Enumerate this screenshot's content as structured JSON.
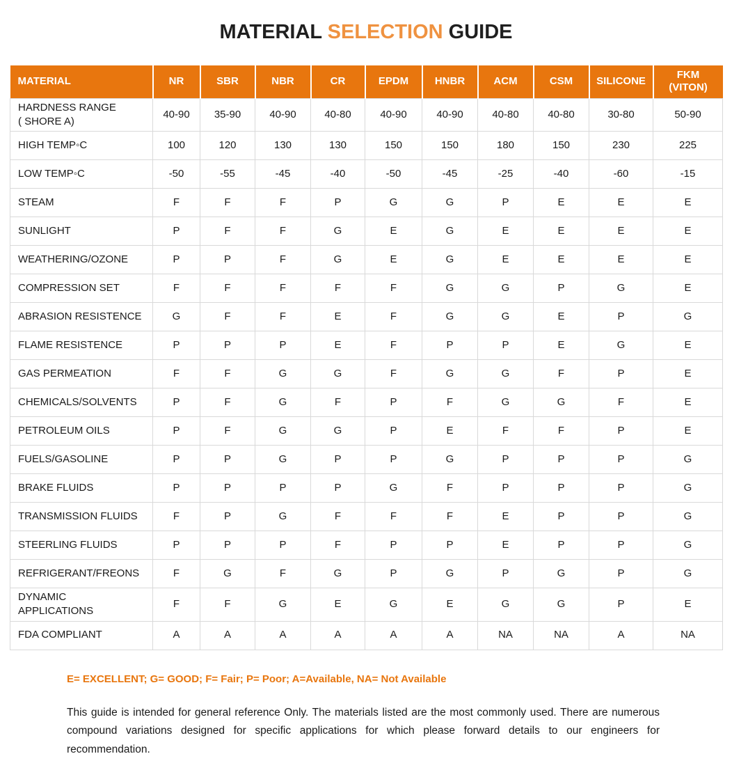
{
  "title": {
    "part1": "MATERIAL ",
    "part2": "SELECTION",
    "part3": " GUIDE"
  },
  "colors": {
    "header_bg": "#e8760e",
    "title_accent": "#ef9240",
    "legend_text": "#e8760e",
    "grid_line": "#d9d9d9"
  },
  "table": {
    "columns": [
      "MATERIAL",
      "NR",
      "SBR",
      "NBR",
      "CR",
      "EPDM",
      "HNBR",
      "ACM",
      "CSM",
      "SILICONE",
      "FKM\n(VITON)"
    ],
    "rows": [
      {
        "label": "HARDNESS RANGE\n( SHORE A)",
        "values": [
          "40-90",
          "35-90",
          "40-90",
          "40-80",
          "40-90",
          "40-90",
          "40-80",
          "40-80",
          "30-80",
          "50-90"
        ]
      },
      {
        "label": "HIGH TEMP◦C",
        "values": [
          "100",
          "120",
          "130",
          "130",
          "150",
          "150",
          "180",
          "150",
          "230",
          "225"
        ]
      },
      {
        "label": "LOW TEMP◦C",
        "values": [
          "-50",
          "-55",
          "-45",
          "-40",
          "-50",
          "-45",
          "-25",
          "-40",
          "-60",
          "-15"
        ]
      },
      {
        "label": "STEAM",
        "values": [
          "F",
          "F",
          "F",
          "P",
          "G",
          "G",
          "P",
          "E",
          "E",
          "E"
        ]
      },
      {
        "label": "SUNLIGHT",
        "values": [
          "P",
          "F",
          "F",
          "G",
          "E",
          "G",
          "E",
          "E",
          "E",
          "E"
        ]
      },
      {
        "label": "WEATHERING/OZONE",
        "values": [
          "P",
          "P",
          "F",
          "G",
          "E",
          "G",
          "E",
          "E",
          "E",
          "E"
        ]
      },
      {
        "label": "COMPRESSION SET",
        "values": [
          "F",
          "F",
          "F",
          "F",
          "F",
          "G",
          "G",
          "P",
          "G",
          "E"
        ]
      },
      {
        "label": "ABRASION RESISTENCE",
        "values": [
          "G",
          "F",
          "F",
          "E",
          "F",
          "G",
          "G",
          "E",
          "P",
          "G"
        ]
      },
      {
        "label": "FLAME RESISTENCE",
        "values": [
          "P",
          "P",
          "P",
          "E",
          "F",
          "P",
          "P",
          "E",
          "G",
          "E"
        ]
      },
      {
        "label": "GAS PERMEATION",
        "values": [
          "F",
          "F",
          "G",
          "G",
          "F",
          "G",
          "G",
          "F",
          "P",
          "E"
        ]
      },
      {
        "label": "CHEMICALS/SOLVENTS",
        "values": [
          "P",
          "F",
          "G",
          "F",
          "P",
          "F",
          "G",
          "G",
          "F",
          "E"
        ]
      },
      {
        "label": "PETROLEUM OILS",
        "values": [
          "P",
          "F",
          "G",
          "G",
          "P",
          "E",
          "F",
          "F",
          "P",
          "E"
        ]
      },
      {
        "label": "FUELS/GASOLINE",
        "values": [
          "P",
          "P",
          "G",
          "P",
          "P",
          "G",
          "P",
          "P",
          "P",
          "G"
        ]
      },
      {
        "label": "BRAKE FLUIDS",
        "values": [
          "P",
          "P",
          "P",
          "P",
          "G",
          "F",
          "P",
          "P",
          "P",
          "G"
        ]
      },
      {
        "label": "TRANSMISSION FLUIDS",
        "values": [
          "F",
          "P",
          "G",
          "F",
          "F",
          "F",
          "E",
          "P",
          "P",
          "G"
        ]
      },
      {
        "label": "STEERLING FLUIDS",
        "values": [
          "P",
          "P",
          "P",
          "F",
          "P",
          "P",
          "E",
          "P",
          "P",
          "G"
        ]
      },
      {
        "label": "REFRIGERANT/FREONS",
        "values": [
          "F",
          "G",
          "F",
          "G",
          "P",
          "G",
          "P",
          "G",
          "P",
          "G"
        ]
      },
      {
        "label": "DYNAMIC\nAPPLICATIONS",
        "values": [
          "F",
          "F",
          "G",
          "E",
          "G",
          "E",
          "G",
          "G",
          "P",
          "E"
        ]
      },
      {
        "label": "FDA COMPLIANT",
        "values": [
          "A",
          "A",
          "A",
          "A",
          "A",
          "A",
          "NA",
          "NA",
          "A",
          "NA"
        ]
      }
    ]
  },
  "legend": {
    "text": "E= EXCELLENT;  G= GOOD;  F= Fair; P= Poor; A=Available, NA= Not Available"
  },
  "footnote": {
    "text": "This guide is intended for general  reference Only. The materials listed are the most commonly used. There are numerous compound variations designed for specific applications for which please forward details to our engineers for recommendation."
  }
}
